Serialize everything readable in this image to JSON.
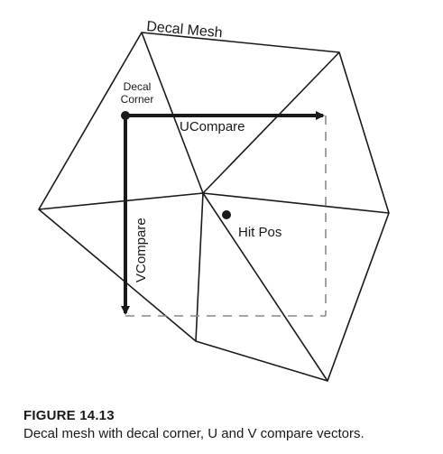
{
  "diagram": {
    "labels": {
      "decal_mesh": "Decal Mesh",
      "decal_corner_line1": "Decal",
      "decal_corner_line2": "Corner",
      "u_compare": "UCompare",
      "v_compare": "VCompare",
      "hit_pos": "Hit Pos"
    }
  },
  "caption": {
    "figure_label": "FIGURE 14.13",
    "text": "Decal mesh with decal corner, U and V compare vectors."
  }
}
